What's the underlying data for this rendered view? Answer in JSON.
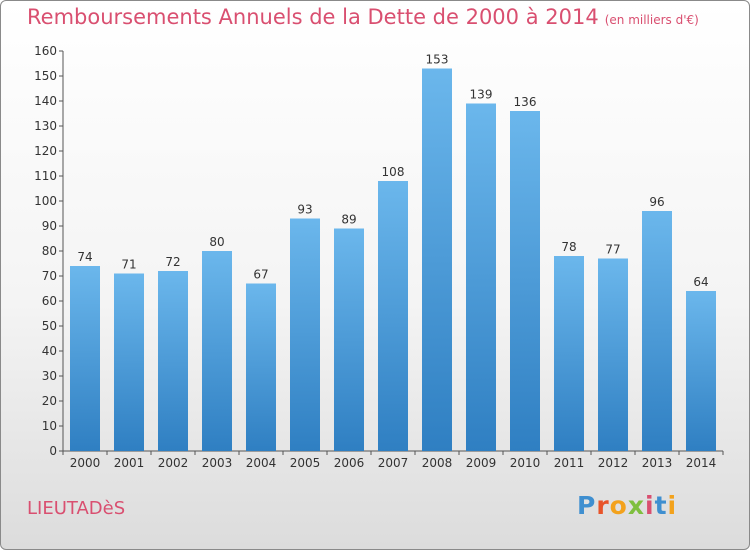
{
  "title": "Remboursements Annuels de la Dette de 2000 à 2014",
  "unit": "(en milliers d'€)",
  "place": "LIEUTADèS",
  "logo": {
    "letters": [
      "P",
      "r",
      "o",
      "x",
      "i",
      "t",
      "i"
    ],
    "colors": [
      "#3f8fd0",
      "#e8542a",
      "#f3a21c",
      "#7fbf3f",
      "#d94f70",
      "#3f8fd0",
      "#f3a21c"
    ]
  },
  "colors": {
    "bar_top": "#6bb7ec",
    "bar_bottom": "#2f7fc2",
    "title": "#d94f70"
  },
  "chart_data": {
    "type": "bar",
    "categories": [
      "2000",
      "2001",
      "2002",
      "2003",
      "2004",
      "2005",
      "2006",
      "2007",
      "2008",
      "2009",
      "2010",
      "2011",
      "2012",
      "2013",
      "2014"
    ],
    "values": [
      74,
      71,
      72,
      80,
      67,
      93,
      89,
      108,
      153,
      139,
      136,
      78,
      77,
      96,
      64
    ],
    "ylim": [
      0,
      160
    ],
    "yticks": [
      0,
      10,
      20,
      30,
      40,
      50,
      60,
      70,
      80,
      90,
      100,
      110,
      120,
      130,
      140,
      150,
      160
    ],
    "grid": false
  }
}
